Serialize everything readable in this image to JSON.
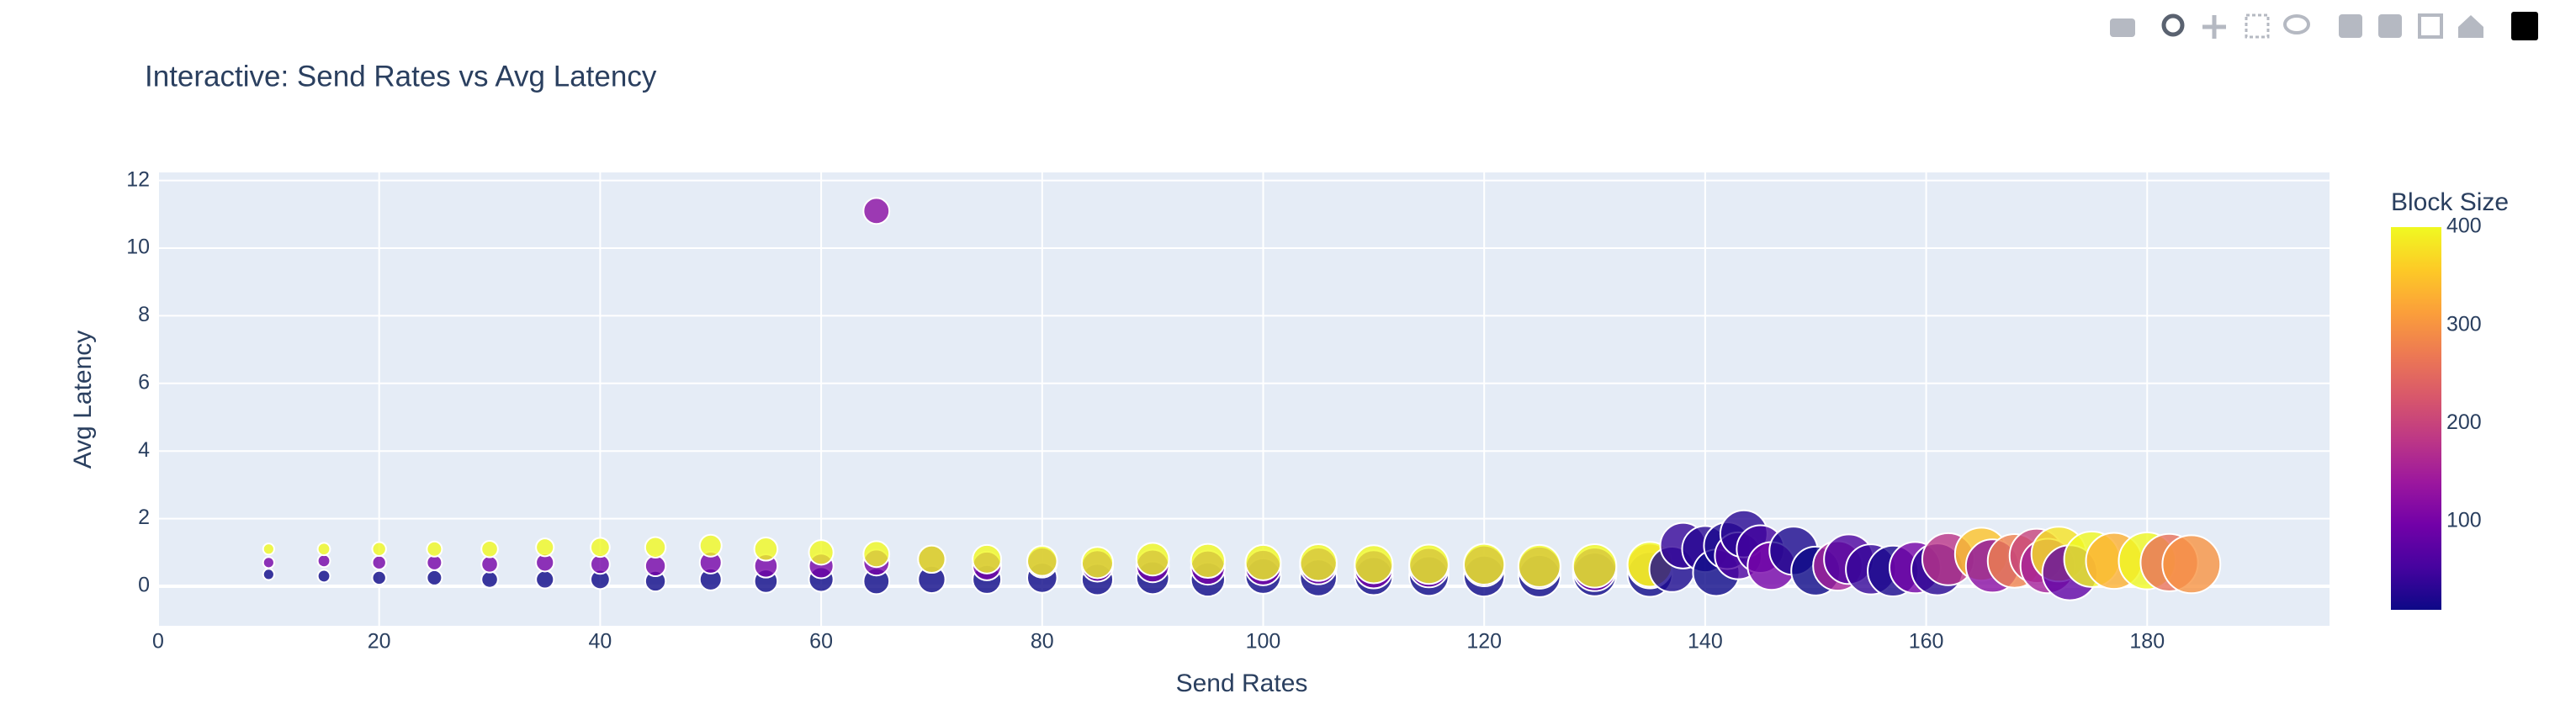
{
  "chart_data": {
    "type": "scatter",
    "title": "Interactive: Send Rates vs Avg Latency",
    "x_label": "Send Rates",
    "y_label": "Avg Latency",
    "colorbar_title": "Block Size",
    "x": [
      10,
      10,
      10,
      15,
      15,
      15,
      20,
      20,
      20,
      25,
      25,
      25,
      30,
      30,
      30,
      35,
      35,
      35,
      40,
      40,
      40,
      45,
      45,
      45,
      50,
      50,
      50,
      55,
      55,
      55,
      60,
      60,
      60,
      65,
      65,
      65,
      65,
      70,
      70,
      70,
      75,
      75,
      75,
      80,
      80,
      80,
      85,
      85,
      85,
      90,
      90,
      90,
      95,
      95,
      95,
      100,
      100,
      100,
      105,
      105,
      105,
      110,
      110,
      110,
      115,
      115,
      115,
      120,
      120,
      120,
      125,
      125,
      125,
      130,
      130,
      130,
      135,
      135,
      135,
      137,
      138,
      140,
      141,
      142,
      143,
      143.5,
      145,
      146,
      148,
      150,
      152,
      153,
      155,
      157,
      159,
      161,
      162,
      165,
      166,
      168,
      170,
      171,
      172,
      173,
      175,
      177,
      180,
      182,
      184
    ],
    "y": [
      0.35,
      0.7,
      1.1,
      0.3,
      0.75,
      1.1,
      0.25,
      0.7,
      1.1,
      0.25,
      0.7,
      1.1,
      0.2,
      0.65,
      1.1,
      0.2,
      0.7,
      1.15,
      0.2,
      0.65,
      1.15,
      0.15,
      0.6,
      1.15,
      0.2,
      0.7,
      1.2,
      0.15,
      0.6,
      1.1,
      0.2,
      0.6,
      1.0,
      0.15,
      0.7,
      0.95,
      11.1,
      0.2,
      0.8,
      0.8,
      0.2,
      0.6,
      0.8,
      0.25,
      0.7,
      0.75,
      0.2,
      0.6,
      0.7,
      0.25,
      0.6,
      0.8,
      0.2,
      0.55,
      0.75,
      0.3,
      0.55,
      0.7,
      0.25,
      0.6,
      0.7,
      0.3,
      0.5,
      0.65,
      0.3,
      0.55,
      0.65,
      0.3,
      0.6,
      0.65,
      0.3,
      0.55,
      0.6,
      0.35,
      0.5,
      0.6,
      0.35,
      0.6,
      0.65,
      0.5,
      1.2,
      1.1,
      0.4,
      1.2,
      0.9,
      1.55,
      1.1,
      0.6,
      1.05,
      0.45,
      0.6,
      0.8,
      0.5,
      0.45,
      0.55,
      0.5,
      0.8,
      0.95,
      0.6,
      0.75,
      0.9,
      0.6,
      0.95,
      0.4,
      0.8,
      0.75,
      0.75,
      0.7,
      0.65
    ],
    "block_size": [
      10,
      100,
      400,
      10,
      100,
      400,
      10,
      100,
      400,
      10,
      100,
      400,
      10,
      100,
      400,
      10,
      100,
      400,
      10,
      100,
      400,
      10,
      100,
      400,
      10,
      100,
      400,
      10,
      100,
      400,
      10,
      100,
      400,
      10,
      100,
      400,
      120,
      10,
      100,
      400,
      10,
      100,
      400,
      10,
      100,
      400,
      10,
      100,
      400,
      10,
      100,
      400,
      10,
      100,
      400,
      10,
      100,
      400,
      10,
      100,
      400,
      10,
      100,
      400,
      10,
      100,
      400,
      10,
      100,
      400,
      10,
      100,
      400,
      10,
      100,
      400,
      10,
      300,
      400,
      20,
      40,
      30,
      10,
      20,
      60,
      30,
      50,
      100,
      20,
      10,
      150,
      60,
      40,
      20,
      100,
      30,
      180,
      350,
      120,
      280,
      200,
      150,
      380,
      80,
      400,
      330,
      400,
      260,
      300
    ],
    "xlim": [
      0,
      196.5
    ],
    "ylim": [
      -1.17,
      12.24
    ],
    "xticks": [
      0,
      20,
      40,
      60,
      80,
      100,
      120,
      140,
      160,
      180
    ],
    "yticks": [
      0,
      2,
      4,
      6,
      8,
      10,
      12
    ],
    "clim": [
      10,
      400
    ],
    "cticks": [
      100,
      200,
      300,
      400
    ],
    "colorscale": [
      "#0d0887",
      "#46039f",
      "#7201a8",
      "#9c179e",
      "#bd3786",
      "#d8576b",
      "#ed7953",
      "#fb9f3a",
      "#fdca26",
      "#f0f921"
    ],
    "grid": true
  }
}
